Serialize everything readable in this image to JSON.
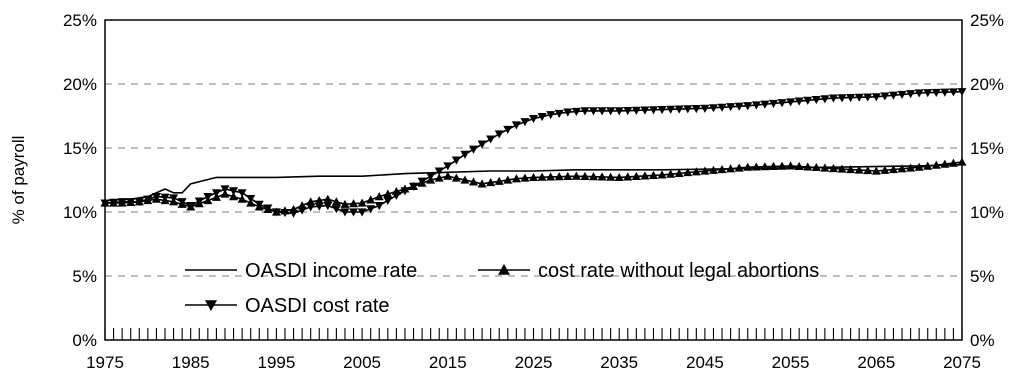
{
  "chart_data": {
    "type": "line",
    "title": "",
    "xlabel": "",
    "ylabel": "% of payroll",
    "xlim": [
      1975,
      2075
    ],
    "ylim": [
      0,
      25
    ],
    "x_ticks": [
      1975,
      1985,
      1995,
      2005,
      2015,
      2025,
      2035,
      2045,
      2055,
      2065,
      2075
    ],
    "y_ticks": [
      0,
      5,
      10,
      15,
      20,
      25
    ],
    "y_tick_labels": [
      "0%",
      "5%",
      "10%",
      "15%",
      "20%",
      "25%"
    ],
    "secondary_y_axis": true,
    "grid": "horizontal-dashed",
    "legend_position": "bottom-left",
    "series": [
      {
        "name": "OASDI income rate",
        "marker": "none",
        "points": [
          [
            1975,
            10.9
          ],
          [
            1978,
            11.0
          ],
          [
            1980,
            11.2
          ],
          [
            1982,
            11.8
          ],
          [
            1983,
            11.5
          ],
          [
            1984,
            11.5
          ],
          [
            1985,
            12.2
          ],
          [
            1988,
            12.7
          ],
          [
            1990,
            12.7
          ],
          [
            1995,
            12.7
          ],
          [
            2000,
            12.8
          ],
          [
            2005,
            12.8
          ],
          [
            2010,
            13.0
          ],
          [
            2015,
            13.1
          ],
          [
            2020,
            13.2
          ],
          [
            2025,
            13.2
          ],
          [
            2030,
            13.3
          ],
          [
            2040,
            13.3
          ],
          [
            2050,
            13.4
          ],
          [
            2060,
            13.5
          ],
          [
            2070,
            13.6
          ],
          [
            2075,
            13.7
          ]
        ]
      },
      {
        "name": "OASDI cost rate",
        "marker": "triangle-down",
        "points": [
          [
            1975,
            10.7
          ],
          [
            1977,
            10.8
          ],
          [
            1979,
            10.8
          ],
          [
            1981,
            11.2
          ],
          [
            1983,
            11.1
          ],
          [
            1985,
            10.5
          ],
          [
            1987,
            11.2
          ],
          [
            1989,
            11.8
          ],
          [
            1991,
            11.5
          ],
          [
            1993,
            10.6
          ],
          [
            1995,
            10.0
          ],
          [
            1997,
            9.9
          ],
          [
            1999,
            10.4
          ],
          [
            2001,
            10.5
          ],
          [
            2003,
            10.0
          ],
          [
            2005,
            10.0
          ],
          [
            2007,
            10.5
          ],
          [
            2009,
            11.3
          ],
          [
            2011,
            12.0
          ],
          [
            2013,
            12.8
          ],
          [
            2015,
            13.6
          ],
          [
            2017,
            14.5
          ],
          [
            2019,
            15.3
          ],
          [
            2021,
            16.1
          ],
          [
            2023,
            16.8
          ],
          [
            2025,
            17.3
          ],
          [
            2027,
            17.6
          ],
          [
            2029,
            17.8
          ],
          [
            2031,
            17.9
          ],
          [
            2035,
            17.9
          ],
          [
            2040,
            18.0
          ],
          [
            2045,
            18.1
          ],
          [
            2050,
            18.3
          ],
          [
            2055,
            18.6
          ],
          [
            2060,
            18.9
          ],
          [
            2065,
            19.0
          ],
          [
            2070,
            19.3
          ],
          [
            2075,
            19.4
          ]
        ]
      },
      {
        "name": "cost rate without legal abortions",
        "marker": "triangle-up",
        "points": [
          [
            1975,
            10.7
          ],
          [
            1977,
            10.7
          ],
          [
            1979,
            10.8
          ],
          [
            1981,
            11.0
          ],
          [
            1983,
            10.8
          ],
          [
            1985,
            10.4
          ],
          [
            1987,
            10.9
          ],
          [
            1989,
            11.4
          ],
          [
            1991,
            11.0
          ],
          [
            1993,
            10.4
          ],
          [
            1995,
            10.0
          ],
          [
            1997,
            10.2
          ],
          [
            1999,
            10.8
          ],
          [
            2001,
            11.0
          ],
          [
            2003,
            10.6
          ],
          [
            2005,
            10.7
          ],
          [
            2007,
            11.2
          ],
          [
            2009,
            11.6
          ],
          [
            2011,
            12.0
          ],
          [
            2013,
            12.5
          ],
          [
            2015,
            12.8
          ],
          [
            2017,
            12.5
          ],
          [
            2019,
            12.2
          ],
          [
            2021,
            12.4
          ],
          [
            2023,
            12.6
          ],
          [
            2025,
            12.7
          ],
          [
            2030,
            12.8
          ],
          [
            2035,
            12.7
          ],
          [
            2040,
            12.9
          ],
          [
            2045,
            13.2
          ],
          [
            2050,
            13.5
          ],
          [
            2055,
            13.6
          ],
          [
            2060,
            13.4
          ],
          [
            2065,
            13.2
          ],
          [
            2070,
            13.5
          ],
          [
            2075,
            13.9
          ]
        ]
      }
    ]
  }
}
